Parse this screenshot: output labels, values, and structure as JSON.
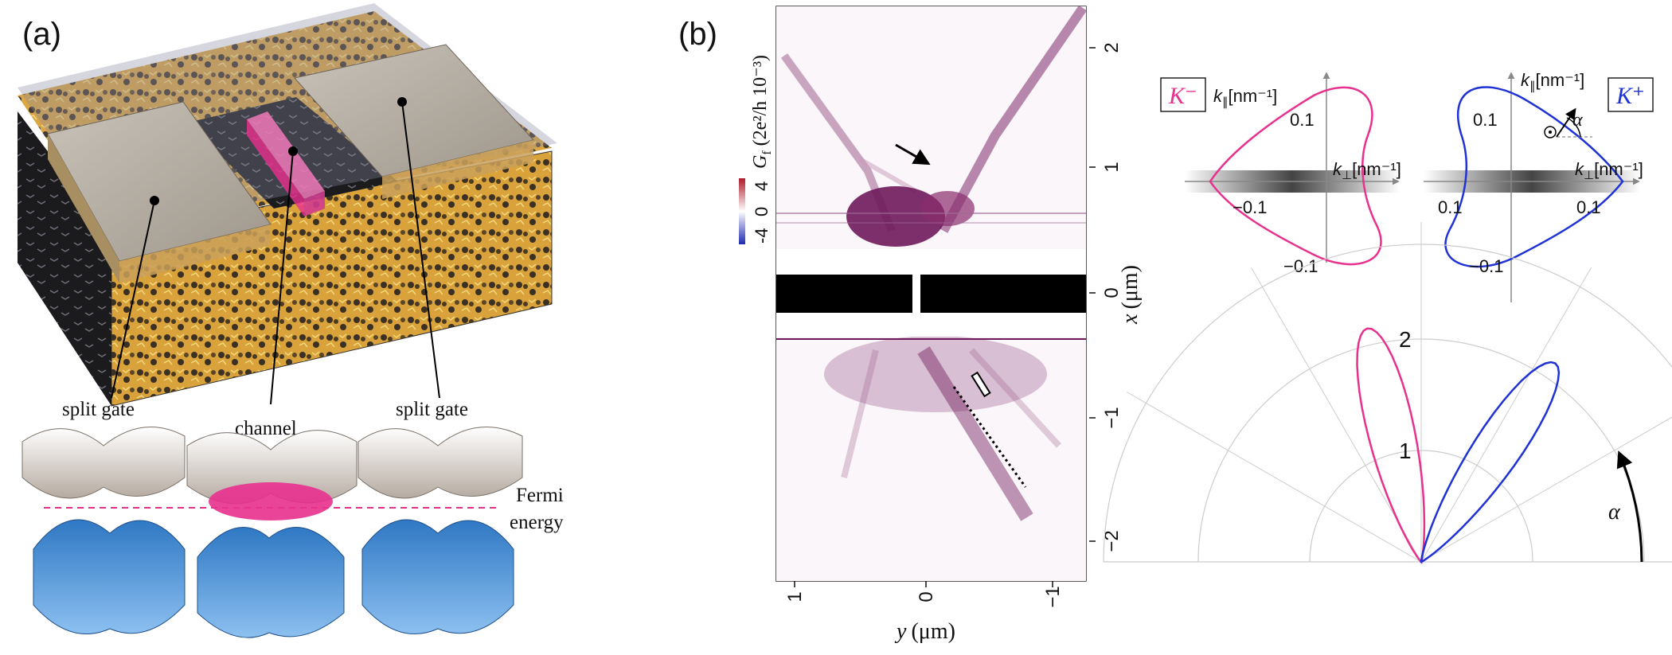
{
  "panel_a": {
    "label": "(a)",
    "callouts": {
      "split_gate_left": "split gate",
      "channel": "channel",
      "split_gate_right": "split gate",
      "fermi_line1": "Fermi",
      "fermi_line2": "energy"
    },
    "colors": {
      "gold": "#d9a23a",
      "gray_gate": "#b9b1a6",
      "pink": "#e8308e",
      "blue": "#4b9ae0"
    }
  },
  "panel_b": {
    "label": "(b)",
    "colorbar": {
      "label": "G",
      "label_sub": "f",
      "label_unit": "(2e²/h 10⁻³)",
      "ticks": [
        "-4",
        "0",
        "4"
      ],
      "colors": {
        "low": "#1f2bb0",
        "high": "#b01a2a"
      }
    },
    "x_axis": {
      "label": "x (μm)",
      "label_var": "x",
      "label_unit": "(μm)",
      "ticks": [
        "2",
        "1",
        "0",
        "−1",
        "−2"
      ]
    },
    "y_axis": {
      "label": "y (μm)",
      "label_var": "y",
      "label_unit": "(μm)",
      "ticks": [
        "1",
        "0",
        "−1"
      ]
    },
    "colors": {
      "signal": "#6e1a5a"
    }
  },
  "fermi_contours": {
    "left": {
      "tag": "K⁻",
      "tag_color": "#e8308e",
      "k_par": "k",
      "k_par_sub": "∥",
      "k_par_unit": "[nm⁻¹]",
      "k_perp": "k",
      "k_perp_sub": "⊥",
      "k_perp_unit": "[nm⁻¹]",
      "ticks": [
        "0.1",
        "−0.1",
        "−0.1"
      ]
    },
    "right": {
      "tag": "K⁺",
      "tag_color": "#1f32d6",
      "k_par": "k",
      "k_par_sub": "∥",
      "k_par_unit": "[nm⁻¹]",
      "k_perp": "k",
      "k_perp_sub": "⊥",
      "k_perp_unit": "[nm⁻¹]",
      "ticks": [
        "0.1",
        "0.1",
        "0.1",
        "−0.1"
      ],
      "angle_label": "α"
    }
  },
  "chart_data": {
    "type": "polar",
    "radial_ticks": [
      "1",
      "2"
    ],
    "angle_label": "α",
    "series": [
      {
        "color": "#e8308e",
        "peak_angle_deg": 103,
        "peak_value": 2.15
      },
      {
        "color": "#1f32d6",
        "peak_angle_deg": 56,
        "peak_value": 2.15
      }
    ]
  }
}
